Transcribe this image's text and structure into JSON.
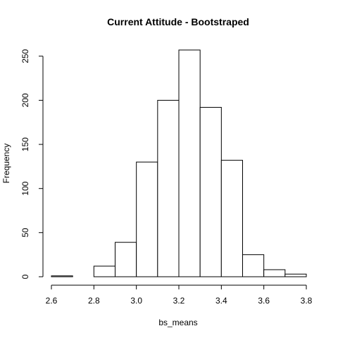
{
  "chart_data": {
    "type": "bar",
    "title": "Current Attitude - Bootstraped",
    "xlabel": "bs_means",
    "ylabel": "Frequency",
    "bins": [
      {
        "x0": 2.6,
        "x1": 2.7,
        "value": 1
      },
      {
        "x0": 2.7,
        "x1": 2.8,
        "value": 0
      },
      {
        "x0": 2.8,
        "x1": 2.9,
        "value": 12
      },
      {
        "x0": 2.9,
        "x1": 3.0,
        "value": 39
      },
      {
        "x0": 3.0,
        "x1": 3.1,
        "value": 130
      },
      {
        "x0": 3.1,
        "x1": 3.2,
        "value": 200
      },
      {
        "x0": 3.2,
        "x1": 3.3,
        "value": 257
      },
      {
        "x0": 3.3,
        "x1": 3.4,
        "value": 192
      },
      {
        "x0": 3.4,
        "x1": 3.5,
        "value": 132
      },
      {
        "x0": 3.5,
        "x1": 3.6,
        "value": 25
      },
      {
        "x0": 3.6,
        "x1": 3.7,
        "value": 8
      },
      {
        "x0": 3.7,
        "x1": 3.8,
        "value": 3
      }
    ],
    "xlim": [
      2.6,
      3.8
    ],
    "ylim": [
      0,
      257
    ],
    "x_ticks": [
      2.6,
      2.8,
      3.0,
      3.2,
      3.4,
      3.6,
      3.8
    ],
    "x_tick_labels": [
      "2.6",
      "2.8",
      "3.0",
      "3.2",
      "3.4",
      "3.6",
      "3.8"
    ],
    "y_ticks": [
      0,
      50,
      100,
      150,
      200,
      250
    ],
    "y_tick_labels": [
      "0",
      "50",
      "100",
      "150",
      "200",
      "250"
    ],
    "grid": false,
    "legend": "none"
  }
}
